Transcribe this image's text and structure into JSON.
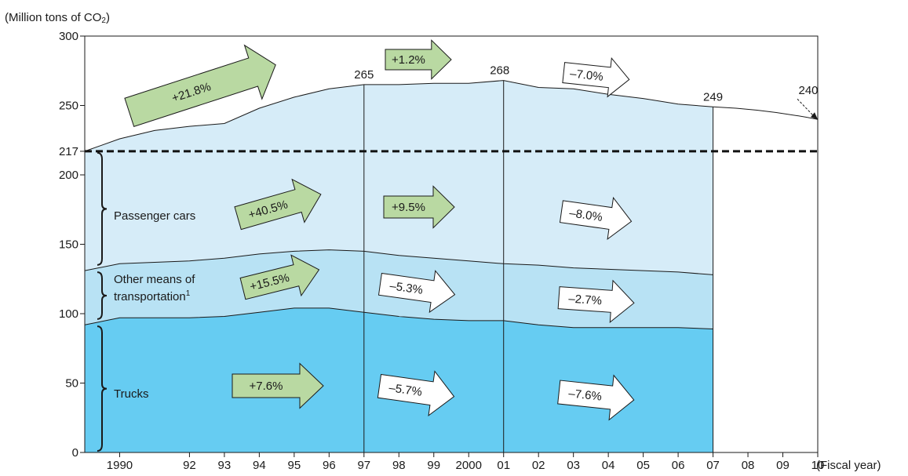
{
  "chart_data": {
    "type": "area",
    "unit_label": "(Million tons of CO",
    "unit_sub": "2",
    "unit_close": ")",
    "x_axis_title": "(Fiscal year)",
    "x_ticks": [
      "1990",
      "92",
      "93",
      "94",
      "95",
      "96",
      "97",
      "98",
      "99",
      "2000",
      "01",
      "02",
      "03",
      "04",
      "05",
      "06",
      "07",
      "08",
      "09",
      "10"
    ],
    "y_ticks": [
      "0",
      "50",
      "100",
      "150",
      "200",
      "217",
      "250",
      "300"
    ],
    "ylim": [
      0,
      300
    ],
    "x": [
      "1989",
      "1990",
      "1991",
      "1992",
      "1993",
      "1994",
      "1995",
      "1996",
      "1997",
      "1998",
      "1999",
      "2000",
      "2001",
      "2002",
      "2003",
      "2004",
      "2005",
      "2006",
      "2007"
    ],
    "series": [
      {
        "name": "Trucks",
        "color": "#66ccf2",
        "values": [
          92,
          97,
          97,
          97,
          98,
          101,
          104,
          104,
          101,
          98,
          96,
          95,
          95,
          92,
          90,
          90,
          90,
          90,
          89
        ]
      },
      {
        "name": "Other means of transportation",
        "color": "#b8e2f4",
        "values": [
          131,
          136,
          137,
          138,
          140,
          143,
          145,
          146,
          145,
          142,
          140,
          138,
          136,
          135,
          133,
          132,
          131,
          130,
          128
        ]
      },
      {
        "name": "Passenger cars",
        "color": "#d6ecf8",
        "values": [
          217,
          226,
          232,
          235,
          237,
          248,
          256,
          262,
          265,
          265,
          266,
          266,
          268,
          263,
          262,
          258,
          255,
          251,
          249
        ]
      }
    ],
    "projection": {
      "from_year": "2007",
      "from_value": 249,
      "to_year": "2010",
      "to_value": 240
    },
    "reference_line": {
      "value": 217,
      "style": "dashed"
    },
    "dividers": [
      "1997",
      "2001",
      "2007"
    ],
    "point_labels": [
      {
        "x": "1997",
        "value": 265,
        "text": "265"
      },
      {
        "x": "2001",
        "value": 268,
        "text": "268"
      },
      {
        "x": "2007",
        "value": 249,
        "text": "249"
      },
      {
        "x": "2010",
        "value": 240,
        "text": "240"
      }
    ],
    "brace_labels": [
      {
        "lines": [
          "Passenger cars"
        ],
        "sup": ""
      },
      {
        "lines": [
          "Other means of",
          "transportation"
        ],
        "sup": "1"
      },
      {
        "lines": [
          "Trucks"
        ],
        "sup": ""
      }
    ],
    "change_arrows": [
      {
        "text": "+21.8%",
        "style": "green"
      },
      {
        "text": "+1.2%",
        "style": "green"
      },
      {
        "text": "–7.0%",
        "style": "white"
      },
      {
        "text": "+40.5%",
        "style": "green"
      },
      {
        "text": "+9.5%",
        "style": "green"
      },
      {
        "text": "–8.0%",
        "style": "white"
      },
      {
        "text": "+15.5%",
        "style": "green"
      },
      {
        "text": "–5.3%",
        "style": "white"
      },
      {
        "text": "–2.7%",
        "style": "white"
      },
      {
        "text": "+7.6%",
        "style": "green"
      },
      {
        "text": "–5.7%",
        "style": "white"
      },
      {
        "text": "–7.6%",
        "style": "white"
      }
    ],
    "colors": {
      "green_arrow": "#b9d9a2",
      "white_arrow": "#ffffff",
      "outline": "#1a1a1a"
    }
  }
}
